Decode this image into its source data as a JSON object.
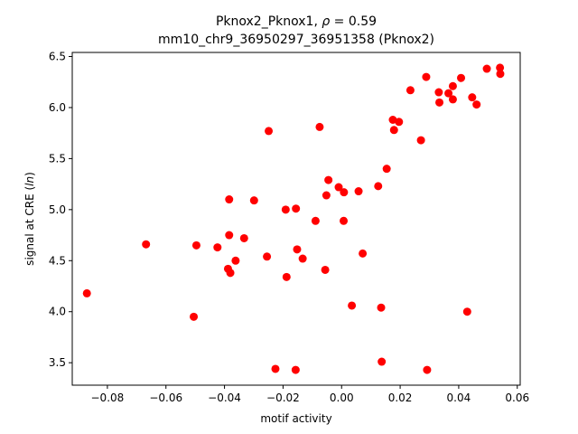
{
  "chart_data": {
    "type": "scatter",
    "title_line1": "Pknox2_Pknox1, ρ = 0.59",
    "title_line2": "mm10_chr9_36950297_36951358 (Pknox2)",
    "xlabel": "motif activity",
    "ylabel": "signal at CRE (ln)",
    "xlim": [
      -0.092,
      0.061
    ],
    "ylim": [
      3.28,
      6.54
    ],
    "xticks": [
      -0.08,
      -0.06,
      -0.04,
      -0.02,
      0.0,
      0.02,
      0.04,
      0.06
    ],
    "xtick_labels": [
      "−0.08",
      "−0.06",
      "−0.04",
      "−0.02",
      "0.00",
      "0.02",
      "0.04",
      "0.06"
    ],
    "yticks": [
      3.5,
      4.0,
      4.5,
      5.0,
      5.5,
      6.0,
      6.5
    ],
    "ytick_labels": [
      "3.5",
      "4.0",
      "4.5",
      "5.0",
      "5.5",
      "6.0",
      "6.5"
    ],
    "grid": false,
    "marker_color": "#ff0000",
    "points": [
      [
        -0.087,
        4.18
      ],
      [
        -0.0668,
        4.66
      ],
      [
        -0.0505,
        3.95
      ],
      [
        -0.0496,
        4.65
      ],
      [
        -0.0424,
        4.63
      ],
      [
        -0.0388,
        4.42
      ],
      [
        -0.0384,
        4.75
      ],
      [
        -0.0384,
        5.1
      ],
      [
        -0.038,
        4.38
      ],
      [
        -0.0362,
        4.5
      ],
      [
        -0.0333,
        4.72
      ],
      [
        -0.0299,
        5.09
      ],
      [
        -0.0255,
        4.54
      ],
      [
        -0.0249,
        5.77
      ],
      [
        -0.0226,
        3.44
      ],
      [
        -0.0191,
        5.0
      ],
      [
        -0.0188,
        4.34
      ],
      [
        -0.0157,
        3.43
      ],
      [
        -0.0156,
        5.01
      ],
      [
        -0.0152,
        4.61
      ],
      [
        -0.0133,
        4.52
      ],
      [
        -0.0089,
        4.89
      ],
      [
        -0.0075,
        5.81
      ],
      [
        -0.0056,
        4.41
      ],
      [
        -0.0052,
        5.14
      ],
      [
        -0.0045,
        5.29
      ],
      [
        -0.001,
        5.22
      ],
      [
        0.0007,
        4.89
      ],
      [
        0.0008,
        5.17
      ],
      [
        0.0035,
        4.06
      ],
      [
        0.0058,
        5.18
      ],
      [
        0.0072,
        4.57
      ],
      [
        0.0125,
        5.23
      ],
      [
        0.0135,
        4.04
      ],
      [
        0.0137,
        3.51
      ],
      [
        0.0154,
        5.4
      ],
      [
        0.0175,
        5.88
      ],
      [
        0.0179,
        5.78
      ],
      [
        0.0196,
        5.86
      ],
      [
        0.0235,
        6.17
      ],
      [
        0.0271,
        5.68
      ],
      [
        0.0289,
        6.3
      ],
      [
        0.0292,
        3.43
      ],
      [
        0.0332,
        6.15
      ],
      [
        0.0334,
        6.05
      ],
      [
        0.0365,
        6.14
      ],
      [
        0.038,
        6.21
      ],
      [
        0.038,
        6.08
      ],
      [
        0.0408,
        6.29
      ],
      [
        0.0429,
        4.0
      ],
      [
        0.0446,
        6.1
      ],
      [
        0.0461,
        6.03
      ],
      [
        0.0496,
        6.38
      ],
      [
        0.0541,
        6.39
      ],
      [
        0.0542,
        6.33
      ]
    ]
  }
}
